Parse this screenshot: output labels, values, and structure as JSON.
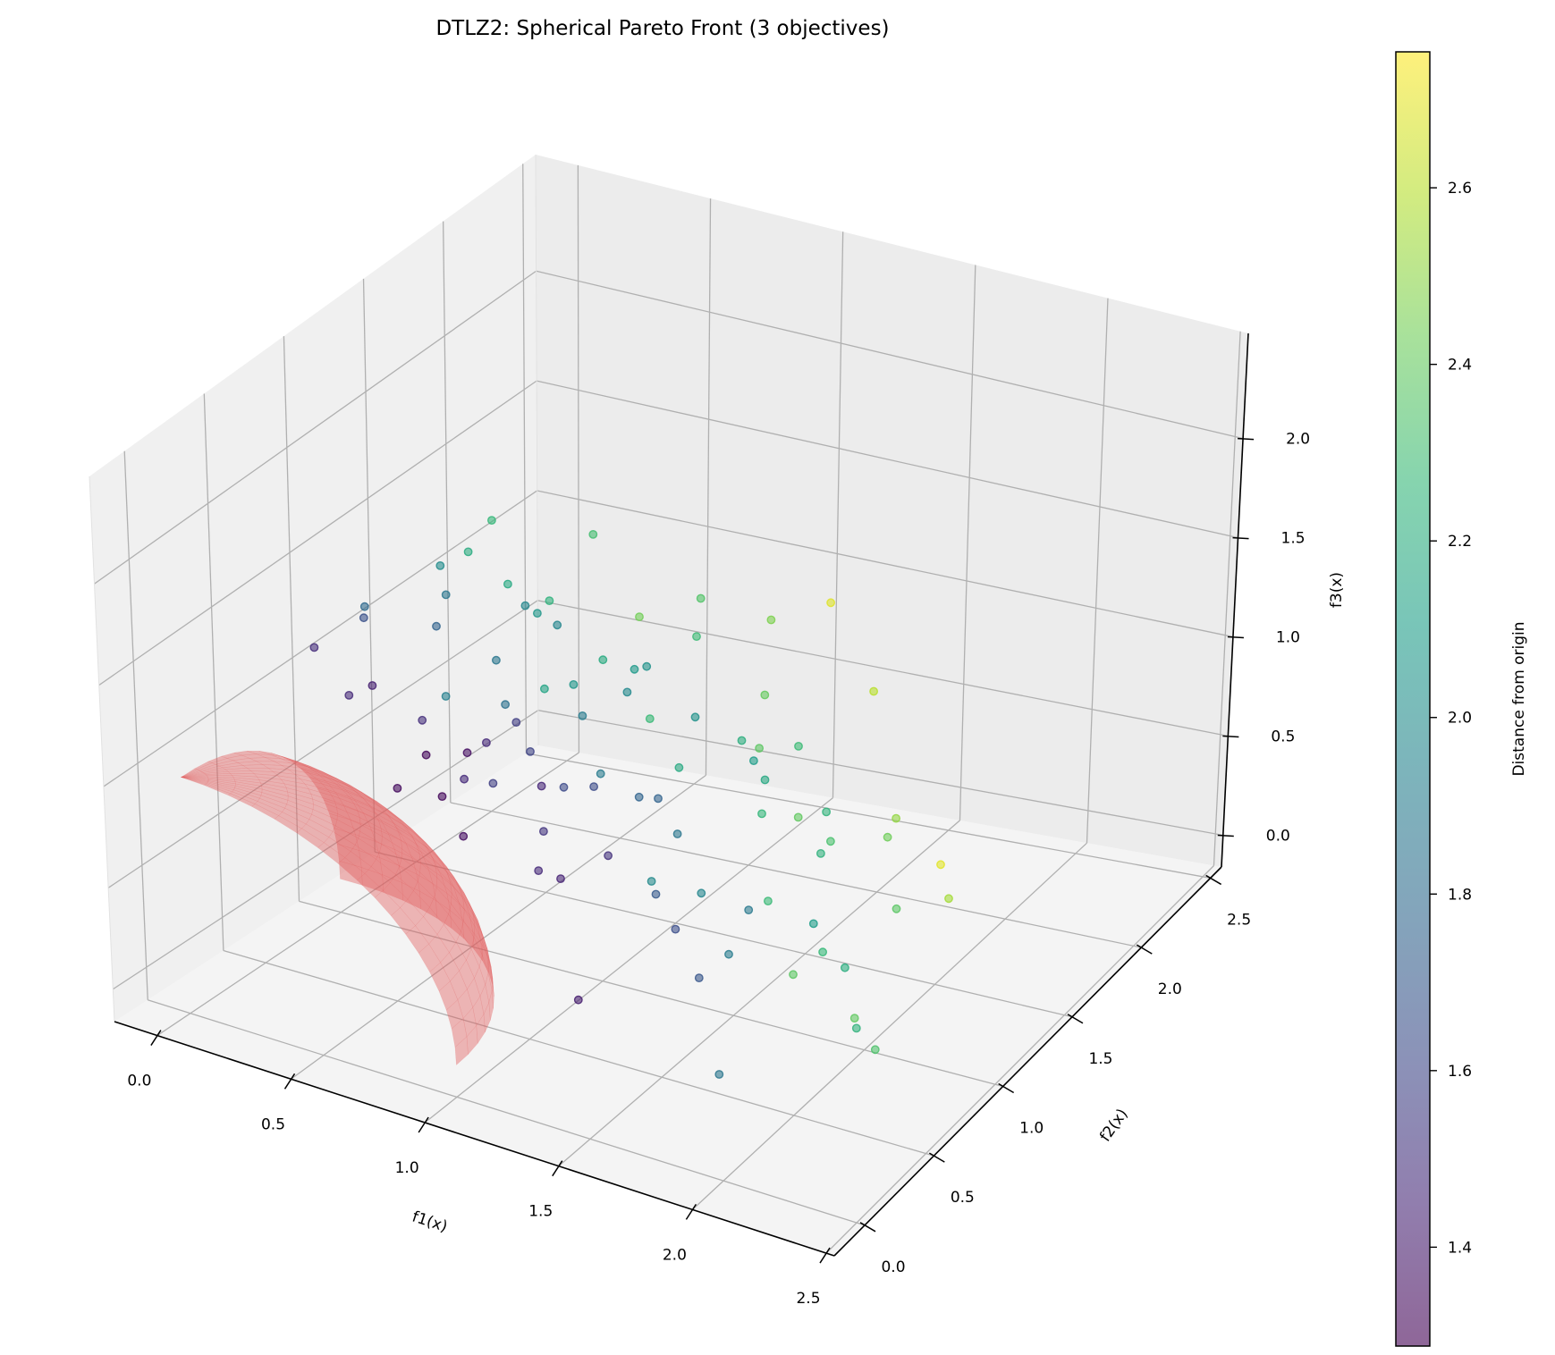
{
  "chart_data": {
    "type": "scatter",
    "projection": "3d",
    "title": "DTLZ2: Spherical Pareto Front (3 objectives)",
    "xlabel": "f1(x)",
    "ylabel": "f2(x)",
    "zlabel": "f3(x)",
    "xlim": [
      -0.16,
      2.53
    ],
    "ylim": [
      -0.22,
      2.58
    ],
    "zlim": [
      -0.16,
      2.53
    ],
    "xticks": [
      "0.0",
      "0.5",
      "1.0",
      "1.5",
      "2.0",
      "2.5"
    ],
    "yticks": [
      "0.0",
      "0.5",
      "1.0",
      "1.5",
      "2.0",
      "2.5"
    ],
    "zticks": [
      "0.0",
      "0.5",
      "1.0",
      "1.5",
      "2.0"
    ],
    "grid": true,
    "colormap": "viridis",
    "alpha": 0.6,
    "colorbar": {
      "label": "Distance from origin",
      "range": [
        1.288,
        2.754
      ],
      "ticks": [
        "1.4",
        "1.6",
        "1.8",
        "2.0",
        "2.2",
        "2.4",
        "2.6"
      ]
    },
    "surface": {
      "name": "Pareto front",
      "shape": "unit sphere octant",
      "radius": 1,
      "color": "#e05a5a"
    },
    "points": [
      [
        0.12,
        1.35,
        0.62
      ],
      [
        0.3,
        1.8,
        0.95
      ],
      [
        0.05,
        1.6,
        1.2
      ],
      [
        0.45,
        1.2,
        0.7
      ],
      [
        0.2,
        2.05,
        0.85
      ],
      [
        0.6,
        1.45,
        0.4
      ],
      [
        0.08,
        1.1,
        0.9
      ],
      [
        0.35,
        1.95,
        0.55
      ],
      [
        0.15,
        1.4,
        1.05
      ],
      [
        0.7,
        1.7,
        0.75
      ],
      [
        0.25,
        1.25,
        0.35
      ],
      [
        0.5,
        2.2,
        0.3
      ],
      [
        0.1,
        1.85,
        1.3
      ],
      [
        0.8,
        1.3,
        0.55
      ],
      [
        0.4,
        1.55,
        1.15
      ],
      [
        0.95,
        1.6,
        0.2
      ],
      [
        1.1,
        1.2,
        0.65
      ],
      [
        0.65,
        1.05,
        0.95
      ],
      [
        1.2,
        1.75,
        0.45
      ],
      [
        0.3,
        1.3,
        0.15
      ],
      [
        1.35,
        1.4,
        0.8
      ],
      [
        0.85,
        1.9,
        0.95
      ],
      [
        1.5,
        1.1,
        0.3
      ],
      [
        1.05,
        0.95,
        0.5
      ],
      [
        1.6,
        1.45,
        0.6
      ],
      [
        0.55,
        0.9,
        0.85
      ],
      [
        1.25,
        0.8,
        0.95
      ],
      [
        1.8,
        1.0,
        0.4
      ],
      [
        0.9,
        0.7,
        1.1
      ],
      [
        1.45,
        0.55,
        0.7
      ],
      [
        2.0,
        0.85,
        0.35
      ],
      [
        1.7,
        0.4,
        0.9
      ],
      [
        1.15,
        0.3,
        0.85
      ],
      [
        2.1,
        0.5,
        0.7
      ],
      [
        1.9,
        1.4,
        0.25
      ],
      [
        1.35,
        0.2,
        0.35
      ],
      [
        1.65,
        0.15,
        1.1
      ],
      [
        2.25,
        0.6,
        0.2
      ],
      [
        1.0,
        1.3,
        1.2
      ],
      [
        0.75,
        1.15,
        1.4
      ],
      [
        1.55,
        0.95,
        1.25
      ],
      [
        2.05,
        1.1,
        0.95
      ],
      [
        0.45,
        0.95,
        1.55
      ],
      [
        1.3,
        1.6,
        1.35
      ],
      [
        0.2,
        0.85,
        1.4
      ],
      [
        1.75,
        0.7,
        1.45
      ],
      [
        2.3,
        0.35,
        0.55
      ],
      [
        0.95,
        0.45,
        1.5
      ],
      [
        1.4,
        1.85,
        0.15
      ],
      [
        2.15,
        1.3,
        0.45
      ],
      [
        0.6,
        1.65,
        1.5
      ],
      [
        1.85,
        0.25,
        0.15
      ],
      [
        0.35,
        0.6,
        1.65
      ],
      [
        1.2,
        0.65,
        1.7
      ],
      [
        2.35,
        0.85,
        1.0
      ],
      [
        0.1,
        0.7,
        1.3
      ],
      [
        1.6,
        1.25,
        1.05
      ],
      [
        0.7,
        2.05,
        0.2
      ],
      [
        1.0,
        2.1,
        0.6
      ],
      [
        0.4,
        2.3,
        0.7
      ],
      [
        1.5,
        1.95,
        0.85
      ],
      [
        2.2,
        0.1,
        0.9
      ],
      [
        0.85,
        0.35,
        1.15
      ],
      [
        1.95,
        0.6,
        1.25
      ],
      [
        0.25,
        1.15,
        0.6
      ],
      [
        0.55,
        1.4,
        0.2
      ],
      [
        1.1,
        1.45,
        0.9
      ],
      [
        0.15,
        2.1,
        0.4
      ],
      [
        0.95,
        1.75,
        1.25
      ],
      [
        1.7,
        1.7,
        0.35
      ],
      [
        0.65,
        0.75,
        1.95
      ],
      [
        1.25,
        1.05,
        0.15
      ],
      [
        0.3,
        1.5,
        0.3
      ],
      [
        2.0,
        0.3,
        1.05
      ],
      [
        1.45,
        0.85,
        0.1
      ],
      [
        0.8,
        0.95,
        0.75
      ],
      [
        0.05,
        1.3,
        0.3
      ],
      [
        0.5,
        1.75,
        0.55
      ],
      [
        1.3,
        0.45,
        1.3
      ],
      [
        1.05,
        2.0,
        0.1
      ],
      [
        0.2,
        1.7,
        0.75
      ],
      [
        1.85,
        0.95,
        0.8
      ],
      [
        0.7,
        1.25,
        0.1
      ],
      [
        2.1,
        0.75,
        0.15
      ],
      [
        0.9,
        0.15,
        1.7
      ],
      [
        1.55,
        1.55,
        1.55
      ],
      [
        0.4,
        0.4,
        1.35
      ],
      [
        1.15,
        0.95,
        1.45
      ],
      [
        0.1,
        1.95,
        0.95
      ],
      [
        1.75,
        0.5,
        0.55
      ]
    ]
  }
}
